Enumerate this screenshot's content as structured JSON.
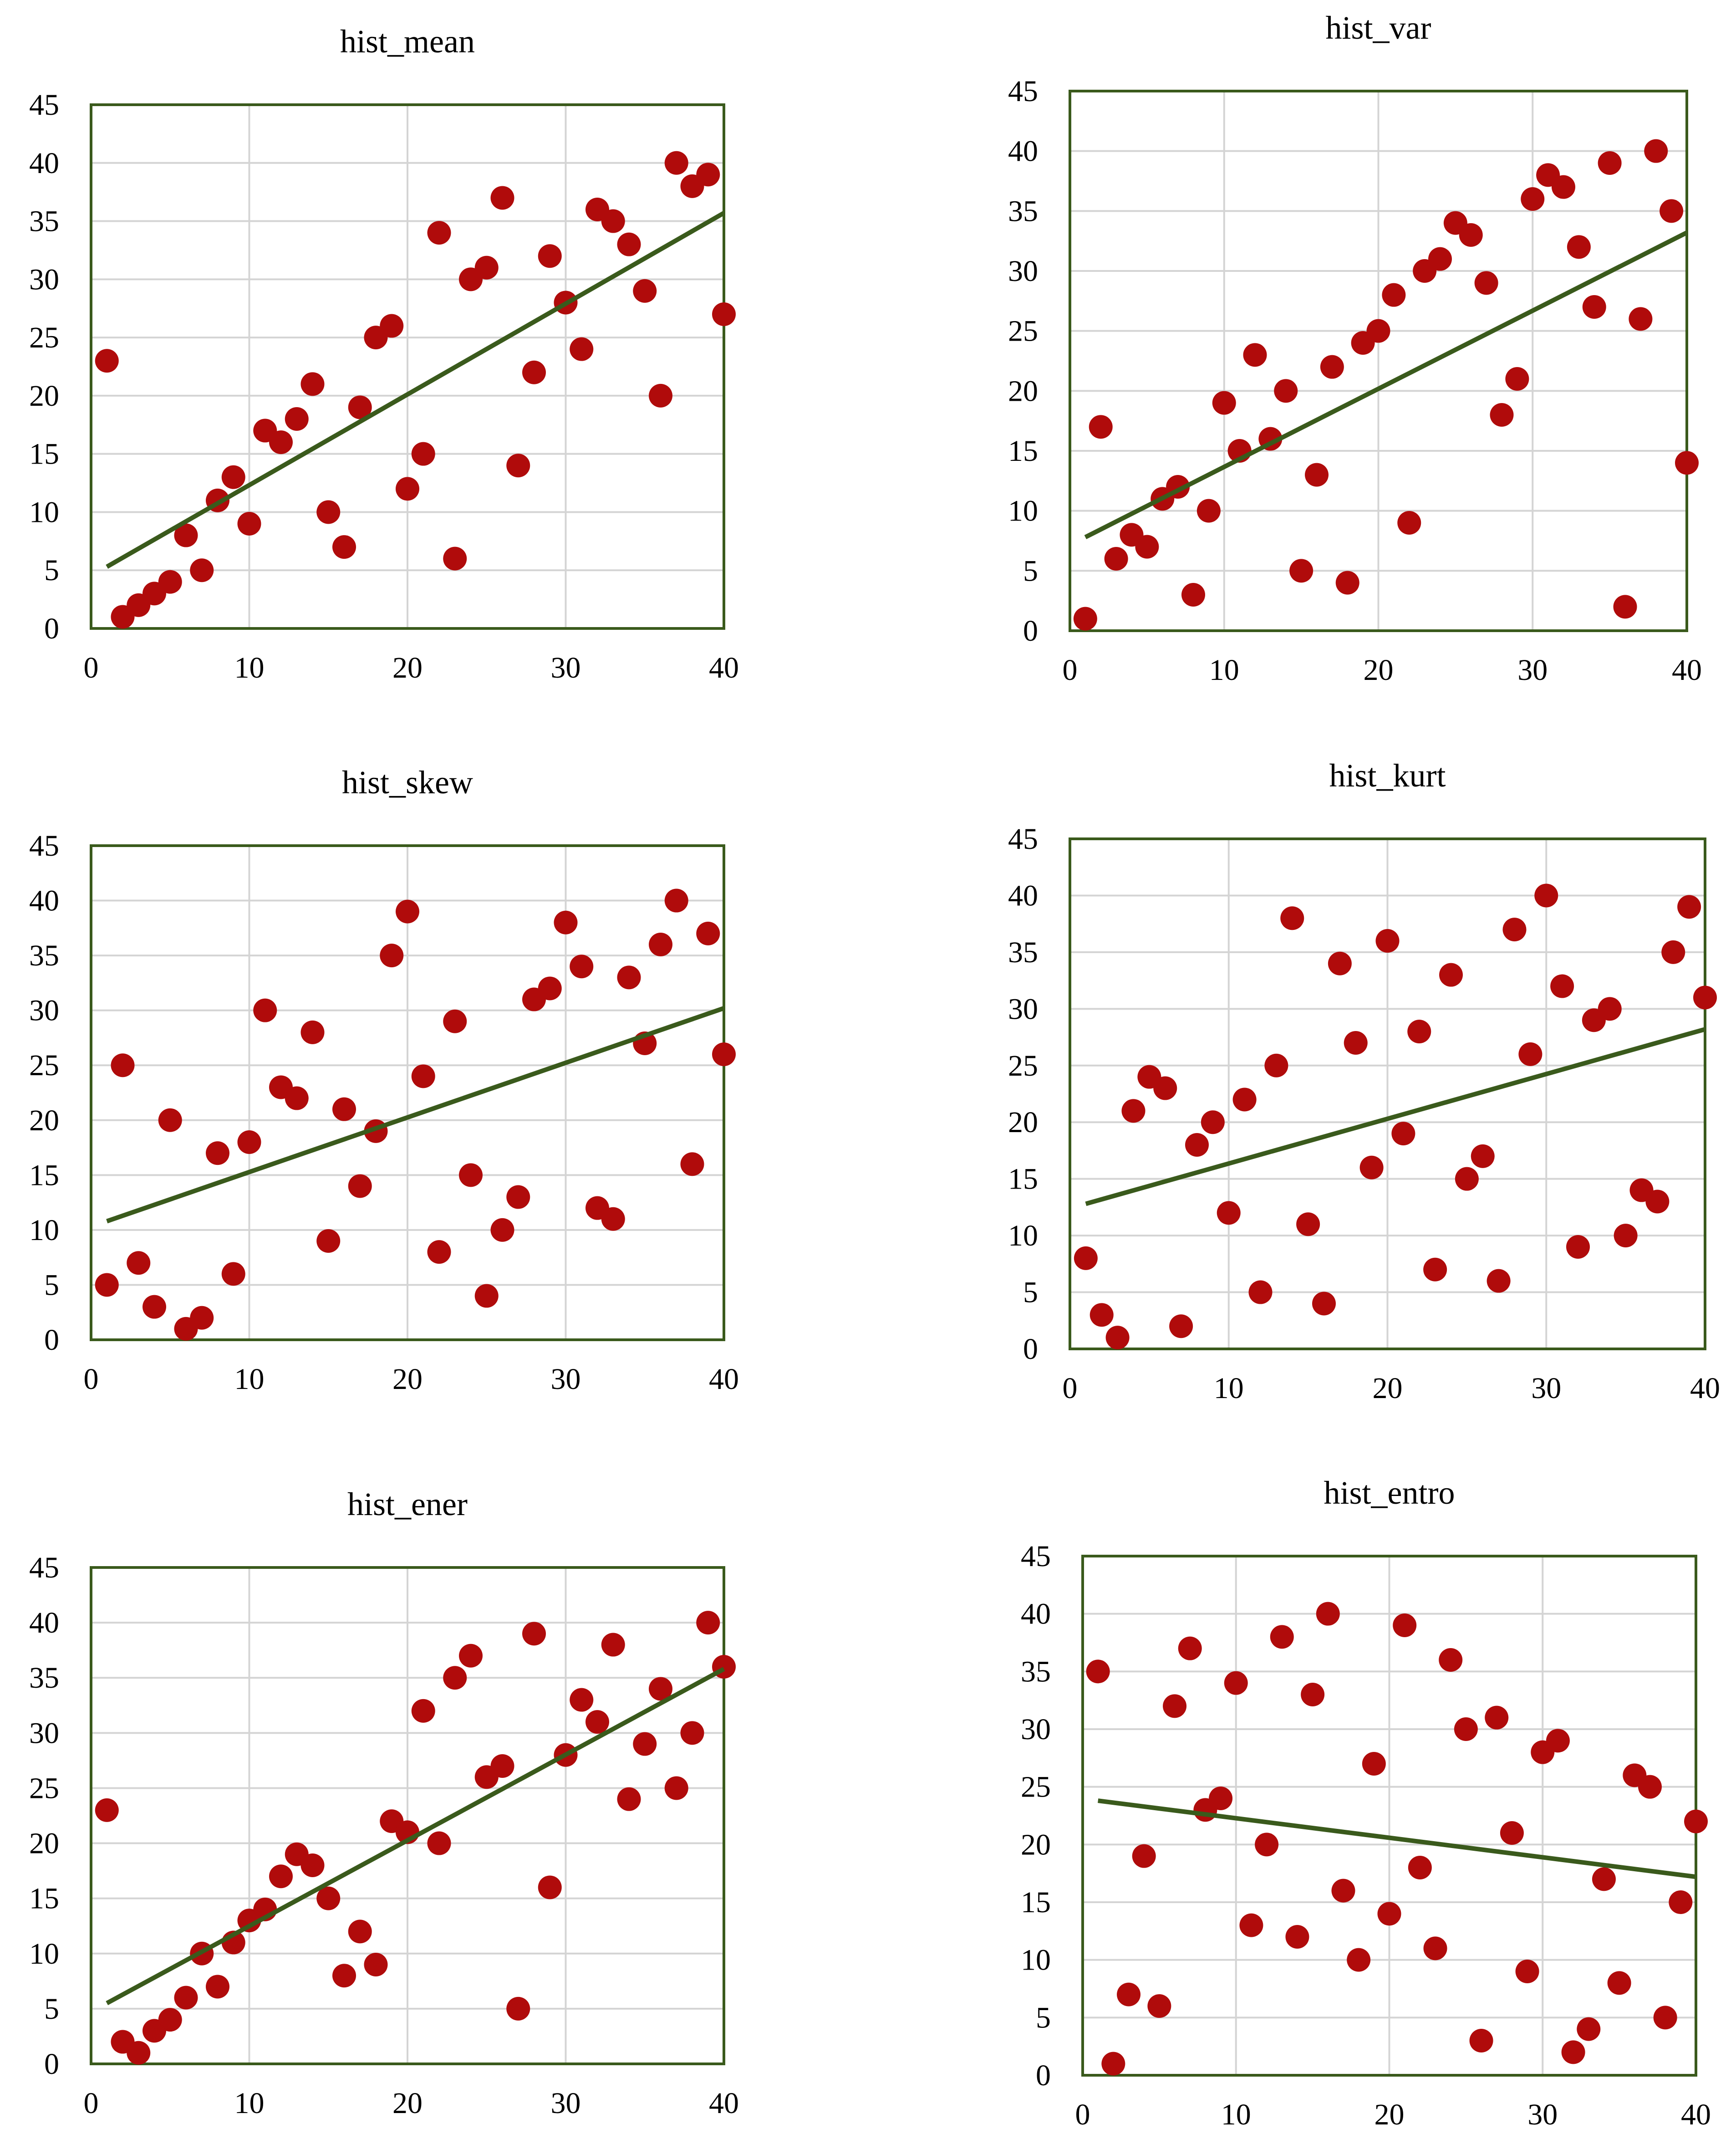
{
  "figure": {
    "colors": {
      "point": "#b00b0b",
      "trendline": "#3a5a1c",
      "frame": "#3a5a1c",
      "grid": "#d4d4d4"
    }
  },
  "chart_data": [
    {
      "type": "scatter",
      "title": "hist_mean",
      "xlim": [
        0,
        40
      ],
      "ylim": [
        0,
        45
      ],
      "xticks": [
        0,
        10,
        20,
        30,
        40
      ],
      "yticks": [
        0,
        5,
        10,
        15,
        20,
        25,
        30,
        35,
        40,
        45
      ],
      "grid": true,
      "trendline": "linear",
      "trendline_endpoints": [
        [
          1,
          5.3
        ],
        [
          40,
          35.7
        ]
      ],
      "x": [
        1,
        2,
        3,
        4,
        5,
        6,
        7,
        8,
        9,
        10,
        11,
        12,
        13,
        14,
        15,
        16,
        17,
        18,
        19,
        20,
        21,
        22,
        23,
        24,
        25,
        26,
        27,
        28,
        29,
        30,
        31,
        32,
        33,
        34,
        35,
        36,
        37,
        38,
        39,
        40
      ],
      "y": [
        23,
        1,
        2,
        3,
        4,
        8,
        5,
        11,
        13,
        9,
        17,
        16,
        18,
        21,
        10,
        7,
        19,
        25,
        26,
        12,
        15,
        34,
        6,
        30,
        31,
        37,
        14,
        22,
        32,
        28,
        24,
        36,
        35,
        33,
        29,
        20,
        40,
        38,
        39,
        27
      ]
    },
    {
      "type": "scatter",
      "title": "hist_var",
      "xlim": [
        0,
        40
      ],
      "ylim": [
        0,
        45
      ],
      "xticks": [
        0,
        10,
        20,
        30,
        40
      ],
      "yticks": [
        0,
        5,
        10,
        15,
        20,
        25,
        30,
        35,
        40,
        45
      ],
      "grid": true,
      "trendline": "linear",
      "trendline_endpoints": [
        [
          1,
          7.8
        ],
        [
          40,
          33.2
        ]
      ],
      "x": [
        1,
        2,
        3,
        4,
        5,
        6,
        7,
        8,
        9,
        10,
        11,
        12,
        13,
        14,
        15,
        16,
        17,
        18,
        19,
        20,
        21,
        22,
        23,
        24,
        25,
        26,
        27,
        28,
        29,
        30,
        31,
        32,
        33,
        34,
        35,
        36,
        37,
        38,
        39,
        40
      ],
      "y": [
        1,
        17,
        6,
        8,
        7,
        11,
        12,
        3,
        10,
        19,
        15,
        23,
        16,
        20,
        5,
        13,
        22,
        4,
        24,
        25,
        28,
        9,
        30,
        31,
        34,
        33,
        29,
        18,
        21,
        36,
        38,
        37,
        32,
        27,
        39,
        2,
        26,
        40,
        35,
        14
      ]
    },
    {
      "type": "scatter",
      "title": "hist_skew",
      "xlim": [
        0,
        40
      ],
      "ylim": [
        0,
        45
      ],
      "xticks": [
        0,
        10,
        20,
        30,
        40
      ],
      "yticks": [
        0,
        5,
        10,
        15,
        20,
        25,
        30,
        35,
        40,
        45
      ],
      "grid": true,
      "trendline": "linear",
      "trendline_endpoints": [
        [
          1,
          10.8
        ],
        [
          40,
          30.2
        ]
      ],
      "x": [
        1,
        2,
        3,
        4,
        5,
        6,
        7,
        8,
        9,
        10,
        11,
        12,
        13,
        14,
        15,
        16,
        17,
        18,
        19,
        20,
        21,
        22,
        23,
        24,
        25,
        26,
        27,
        28,
        29,
        30,
        31,
        32,
        33,
        34,
        35,
        36,
        37,
        38,
        39,
        40
      ],
      "y": [
        5,
        25,
        7,
        3,
        20,
        1,
        2,
        17,
        6,
        18,
        30,
        23,
        22,
        28,
        9,
        21,
        14,
        19,
        35,
        39,
        24,
        8,
        29,
        15,
        4,
        10,
        13,
        31,
        32,
        38,
        34,
        12,
        11,
        33,
        27,
        36,
        40,
        16,
        37,
        26
      ]
    },
    {
      "type": "scatter",
      "title": "hist_kurt",
      "xlim": [
        0,
        40
      ],
      "ylim": [
        0,
        45
      ],
      "xticks": [
        0,
        10,
        20,
        30,
        40
      ],
      "yticks": [
        0,
        5,
        10,
        15,
        20,
        25,
        30,
        35,
        40,
        45
      ],
      "grid": true,
      "trendline": "linear",
      "trendline_endpoints": [
        [
          1,
          12.8
        ],
        [
          40,
          28.2
        ]
      ],
      "x": [
        1,
        2,
        3,
        4,
        5,
        6,
        7,
        8,
        9,
        10,
        11,
        12,
        13,
        14,
        15,
        16,
        17,
        18,
        19,
        20,
        21,
        22,
        23,
        24,
        25,
        26,
        27,
        28,
        29,
        30,
        31,
        32,
        33,
        34,
        35,
        36,
        37,
        38,
        39,
        40
      ],
      "y": [
        8,
        3,
        1,
        21,
        24,
        23,
        2,
        18,
        20,
        12,
        22,
        5,
        25,
        38,
        11,
        4,
        34,
        27,
        16,
        36,
        19,
        28,
        7,
        33,
        15,
        17,
        6,
        37,
        26,
        40,
        32,
        9,
        29,
        30,
        10,
        14,
        13,
        35,
        39,
        31
      ]
    },
    {
      "type": "scatter",
      "title": "hist_ener",
      "xlim": [
        0,
        40
      ],
      "ylim": [
        0,
        45
      ],
      "xticks": [
        0,
        10,
        20,
        30,
        40
      ],
      "yticks": [
        0,
        5,
        10,
        15,
        20,
        25,
        30,
        35,
        40,
        45
      ],
      "grid": true,
      "trendline": "linear",
      "trendline_endpoints": [
        [
          1,
          5.5
        ],
        [
          40,
          35.8
        ]
      ],
      "x": [
        1,
        2,
        3,
        4,
        5,
        6,
        7,
        8,
        9,
        10,
        11,
        12,
        13,
        14,
        15,
        16,
        17,
        18,
        19,
        20,
        21,
        22,
        23,
        24,
        25,
        26,
        27,
        28,
        29,
        30,
        31,
        32,
        33,
        34,
        35,
        36,
        37,
        38,
        39,
        40
      ],
      "y": [
        23,
        2,
        1,
        3,
        4,
        6,
        10,
        7,
        11,
        13,
        14,
        17,
        19,
        18,
        15,
        8,
        12,
        9,
        22,
        21,
        32,
        20,
        35,
        37,
        26,
        27,
        5,
        39,
        16,
        28,
        33,
        31,
        38,
        24,
        29,
        34,
        25,
        30,
        40,
        36
      ]
    },
    {
      "type": "scatter",
      "title": "hist_entro",
      "xlim": [
        0,
        40
      ],
      "ylim": [
        0,
        45
      ],
      "xticks": [
        0,
        10,
        20,
        30,
        40
      ],
      "yticks": [
        0,
        5,
        10,
        15,
        20,
        25,
        30,
        35,
        40,
        45
      ],
      "grid": true,
      "trendline": "linear",
      "trendline_endpoints": [
        [
          1,
          23.8
        ],
        [
          40,
          17.2
        ]
      ],
      "x": [
        1,
        2,
        3,
        4,
        5,
        6,
        7,
        8,
        9,
        10,
        11,
        12,
        13,
        14,
        15,
        16,
        17,
        18,
        19,
        20,
        21,
        22,
        23,
        24,
        25,
        26,
        27,
        28,
        29,
        30,
        31,
        32,
        33,
        34,
        35,
        36,
        37,
        38,
        39,
        40
      ],
      "y": [
        35,
        1,
        7,
        19,
        6,
        32,
        37,
        23,
        24,
        34,
        13,
        20,
        38,
        12,
        33,
        40,
        16,
        10,
        27,
        14,
        39,
        18,
        11,
        36,
        30,
        3,
        31,
        21,
        9,
        28,
        29,
        2,
        4,
        17,
        8,
        26,
        25,
        5,
        15,
        22
      ]
    }
  ]
}
